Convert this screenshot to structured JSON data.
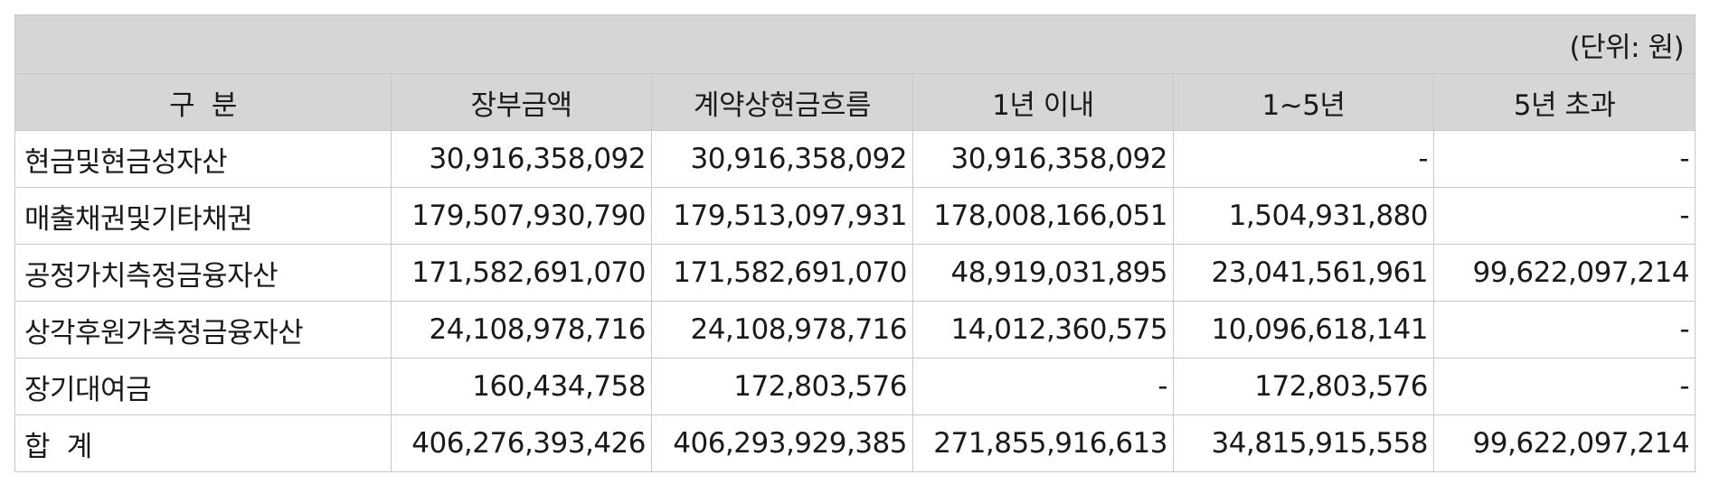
{
  "unit_note": "(단위: 원)",
  "headers": [
    "구  분",
    "장부금액",
    "계약상현금흐름",
    "1년 이내",
    "1~5년",
    "5년 초과"
  ],
  "rows": [
    [
      "현금및현금성자산",
      "30,916,358,092",
      "30,916,358,092",
      "30,916,358,092",
      "-",
      "-"
    ],
    [
      "매출채권및기타채권",
      "179,507,930,790",
      "179,513,097,931",
      "178,008,166,051",
      "1,504,931,880",
      "-"
    ],
    [
      "공정가치측정금융자산",
      "171,582,691,070",
      "171,582,691,070",
      "48,919,031,895",
      "23,041,561,961",
      "99,622,097,214"
    ],
    [
      "상각후원가측정금융자산",
      "24,108,978,716",
      "24,108,978,716",
      "14,012,360,575",
      "10,096,618,141",
      "-"
    ],
    [
      "장기대여금",
      "160,434,758",
      "172,803,576",
      "-",
      "172,803,576",
      "-"
    ],
    [
      "합  계",
      "406,276,393,426",
      "406,293,929,385",
      "271,855,916,613",
      "34,815,915,558",
      "99,622,097,214"
    ]
  ]
}
